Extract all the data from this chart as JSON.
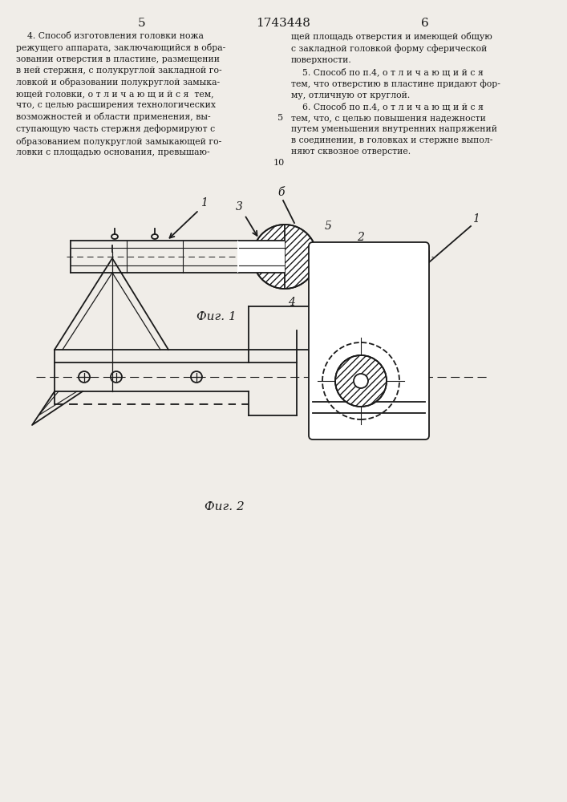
{
  "page_number_left": "5",
  "page_number_center": "1743448",
  "page_number_right": "6",
  "text_left": "    4. Способ изготовления головки ножа\nрежущего аппарата, заключающийся в обра-\nзовании отверстия в пластине, размещении\nв ней стержня, с полукруглой закладной го-\nловкой и образовании полукруглой замыка-\nющей головки, о т л и ч а ю щ и й с я  тем,\nчто, с целью расширения технологических\nвозможностей и области применения, вы-\nступающую часть стержня деформируют с\nобразованием полукруглой замыкающей го-\nловки с площадью основания, превышаю-",
  "text_right": "щей площадь отверстия и имеющей общую\nс закладной головкой форму сферической\nповерхности.\n    5. Способ по п.4, о т л и ч а ю щ и й с я\nтем, что отверстию в пластине придают фор-\nму, отличную от круглой.\n    6. Способ по п.4, о т л и ч а ю щ и й с я\nтем, что, с целью повышения надежности\nпутем уменьшения внутренних напряжений\nв соединении, в головках и стержне выпол-\nняют сквозное отверстие.",
  "fig1_label": "Фиг. 1",
  "fig2_label": "Фиг. 2",
  "bg_color": "#f0ede8",
  "line_color": "#1a1a1a"
}
